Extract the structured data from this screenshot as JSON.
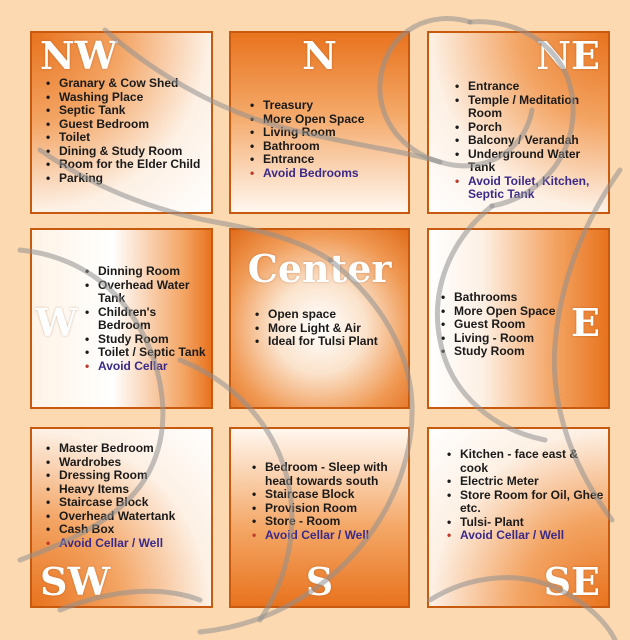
{
  "cells": {
    "nw": {
      "label": "NW",
      "items": [
        "Granary & Cow Shed",
        "Washing Place",
        "Septic Tank",
        "Guest Bedroom",
        "Toilet",
        "Dining & Study Room",
        "Room for the Elder Child",
        "Parking"
      ]
    },
    "n": {
      "label": "N",
      "items": [
        "Treasury",
        "More Open Space",
        "Living Room",
        "Bathroom",
        "Entrance"
      ],
      "avoid": "Avoid Bedrooms"
    },
    "ne": {
      "label": "NE",
      "items": [
        "Entrance",
        "Temple / Meditation Room",
        "Porch",
        "Balcony / Verandah",
        "Underground Water Tank"
      ],
      "avoid": "Avoid Toilet, Kitchen, Septic Tank"
    },
    "w": {
      "label": "W",
      "items": [
        "Dinning Room",
        "Overhead Water Tank",
        "Children's Bedroom",
        "Study Room",
        "Toilet / Septic Tank"
      ],
      "avoid": "Avoid Cellar"
    },
    "c": {
      "label": "Center",
      "items": [
        "Open space",
        "More Light & Air",
        "Ideal for Tulsi Plant"
      ]
    },
    "e": {
      "label": "E",
      "items": [
        "Bathrooms",
        "More Open Space",
        "Guest Room",
        "Living - Room",
        "Study Room"
      ]
    },
    "sw": {
      "label": "SW",
      "items": [
        "Master Bedroom",
        "Wardrobes",
        "Dressing Room",
        "Heavy Items",
        "Staircase Block",
        "Overhead Watertank",
        "Cash Box"
      ],
      "avoid": "Avoid Cellar / Well"
    },
    "s": {
      "label": "S",
      "items": [
        "Bedroom - Sleep with head towards south",
        "Staircase Block",
        "Provision Room",
        "Store - Room"
      ],
      "avoid": "Avoid Cellar / Well"
    },
    "se": {
      "label": "SE",
      "items": [
        "Kitchen - face east & cook",
        "Electric Meter",
        "Store Room for Oil, Ghee etc.",
        "Tulsi- Plant"
      ],
      "avoid": "Avoid Cellar / Well"
    }
  },
  "colors": {
    "background": "#fcd9b0",
    "accent": "#e8731e",
    "border": "#c85a10",
    "avoid_text": "#3a2a8a",
    "avoid_bullet": "#c0392b"
  }
}
